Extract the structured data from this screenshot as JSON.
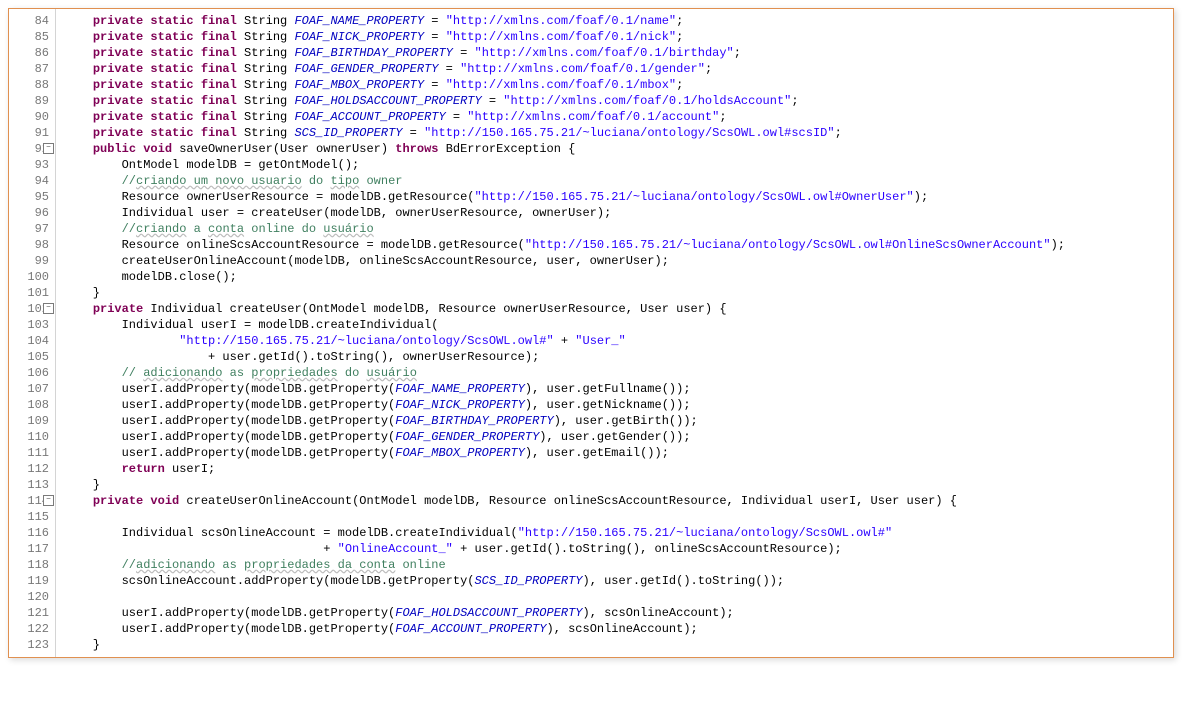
{
  "colors": {
    "keyword": "#7f0055",
    "string": "#2a00ff",
    "field": "#0000c0",
    "comment": "#3f7f5f",
    "lineNumber": "#787878",
    "border": "#e09050",
    "background": "#ffffff"
  },
  "startLine": 84,
  "endLine": 123,
  "foldLines": [
    92,
    102,
    114
  ],
  "lines": [
    {
      "n": 84,
      "t": [
        {
          "s": "    ",
          "c": "plain"
        },
        {
          "s": "private static final",
          "c": "kw"
        },
        {
          "s": " String ",
          "c": "plain"
        },
        {
          "s": "FOAF_NAME_PROPERTY",
          "c": "field"
        },
        {
          "s": " = ",
          "c": "plain"
        },
        {
          "s": "\"http://xmlns.com/foaf/0.1/name\"",
          "c": "str"
        },
        {
          "s": ";",
          "c": "plain"
        }
      ]
    },
    {
      "n": 85,
      "t": [
        {
          "s": "    ",
          "c": "plain"
        },
        {
          "s": "private static final",
          "c": "kw"
        },
        {
          "s": " String ",
          "c": "plain"
        },
        {
          "s": "FOAF_NICK_PROPERTY",
          "c": "field"
        },
        {
          "s": " = ",
          "c": "plain"
        },
        {
          "s": "\"http://xmlns.com/foaf/0.1/nick\"",
          "c": "str"
        },
        {
          "s": ";",
          "c": "plain"
        }
      ]
    },
    {
      "n": 86,
      "t": [
        {
          "s": "    ",
          "c": "plain"
        },
        {
          "s": "private static final",
          "c": "kw"
        },
        {
          "s": " String ",
          "c": "plain"
        },
        {
          "s": "FOAF_BIRTHDAY_PROPERTY",
          "c": "field"
        },
        {
          "s": " = ",
          "c": "plain"
        },
        {
          "s": "\"http://xmlns.com/foaf/0.1/birthday\"",
          "c": "str"
        },
        {
          "s": ";",
          "c": "plain"
        }
      ]
    },
    {
      "n": 87,
      "t": [
        {
          "s": "    ",
          "c": "plain"
        },
        {
          "s": "private static final",
          "c": "kw"
        },
        {
          "s": " String ",
          "c": "plain"
        },
        {
          "s": "FOAF_GENDER_PROPERTY",
          "c": "field"
        },
        {
          "s": " = ",
          "c": "plain"
        },
        {
          "s": "\"http://xmlns.com/foaf/0.1/gender\"",
          "c": "str"
        },
        {
          "s": ";",
          "c": "plain"
        }
      ]
    },
    {
      "n": 88,
      "t": [
        {
          "s": "    ",
          "c": "plain"
        },
        {
          "s": "private static final",
          "c": "kw"
        },
        {
          "s": " String ",
          "c": "plain"
        },
        {
          "s": "FOAF_MBOX_PROPERTY",
          "c": "field"
        },
        {
          "s": " = ",
          "c": "plain"
        },
        {
          "s": "\"http://xmlns.com/foaf/0.1/mbox\"",
          "c": "str"
        },
        {
          "s": ";",
          "c": "plain"
        }
      ]
    },
    {
      "n": 89,
      "t": [
        {
          "s": "    ",
          "c": "plain"
        },
        {
          "s": "private static final",
          "c": "kw"
        },
        {
          "s": " String ",
          "c": "plain"
        },
        {
          "s": "FOAF_HOLDSACCOUNT_PROPERTY",
          "c": "field"
        },
        {
          "s": " = ",
          "c": "plain"
        },
        {
          "s": "\"http://xmlns.com/foaf/0.1/holdsAccount\"",
          "c": "str"
        },
        {
          "s": ";",
          "c": "plain"
        }
      ]
    },
    {
      "n": 90,
      "t": [
        {
          "s": "    ",
          "c": "plain"
        },
        {
          "s": "private static final",
          "c": "kw"
        },
        {
          "s": " String ",
          "c": "plain"
        },
        {
          "s": "FOAF_ACCOUNT_PROPERTY",
          "c": "field"
        },
        {
          "s": " = ",
          "c": "plain"
        },
        {
          "s": "\"http://xmlns.com/foaf/0.1/account\"",
          "c": "str"
        },
        {
          "s": ";",
          "c": "plain"
        }
      ]
    },
    {
      "n": 91,
      "t": [
        {
          "s": "    ",
          "c": "plain"
        },
        {
          "s": "private static final",
          "c": "kw"
        },
        {
          "s": " String ",
          "c": "plain"
        },
        {
          "s": "SCS_ID_PROPERTY",
          "c": "field"
        },
        {
          "s": " = ",
          "c": "plain"
        },
        {
          "s": "\"http://150.165.75.21/~luciana/ontology/ScsOWL.owl#scsID\"",
          "c": "str"
        },
        {
          "s": ";",
          "c": "plain"
        }
      ]
    },
    {
      "n": 92,
      "t": [
        {
          "s": "    ",
          "c": "plain"
        },
        {
          "s": "public void",
          "c": "kw"
        },
        {
          "s": " saveOwnerUser(User ownerUser) ",
          "c": "plain"
        },
        {
          "s": "throws",
          "c": "kw"
        },
        {
          "s": " BdErrorException {",
          "c": "plain"
        }
      ]
    },
    {
      "n": 93,
      "t": [
        {
          "s": "        OntModel modelDB = getOntModel();",
          "c": "plain"
        }
      ]
    },
    {
      "n": 94,
      "t": [
        {
          "s": "        ",
          "c": "plain"
        },
        {
          "s": "//",
          "c": "comment"
        },
        {
          "s": "criando um novo usuario",
          "c": "comment wavy"
        },
        {
          "s": " do ",
          "c": "comment"
        },
        {
          "s": "tipo",
          "c": "comment wavy"
        },
        {
          "s": " owner",
          "c": "comment"
        }
      ]
    },
    {
      "n": 95,
      "t": [
        {
          "s": "        Resource ownerUserResource = modelDB.getResource(",
          "c": "plain"
        },
        {
          "s": "\"http://150.165.75.21/~luciana/ontology/ScsOWL.owl#OwnerUser\"",
          "c": "str"
        },
        {
          "s": ");",
          "c": "plain"
        }
      ]
    },
    {
      "n": 96,
      "t": [
        {
          "s": "        Individual user = createUser(modelDB, ownerUserResource, ownerUser);",
          "c": "plain"
        }
      ]
    },
    {
      "n": 97,
      "t": [
        {
          "s": "        ",
          "c": "plain"
        },
        {
          "s": "//",
          "c": "comment"
        },
        {
          "s": "criando",
          "c": "comment wavy"
        },
        {
          "s": " a ",
          "c": "comment"
        },
        {
          "s": "conta",
          "c": "comment wavy"
        },
        {
          "s": " online do ",
          "c": "comment"
        },
        {
          "s": "usuário",
          "c": "comment wavy"
        }
      ]
    },
    {
      "n": 98,
      "t": [
        {
          "s": "        Resource onlineScsAccountResource = modelDB.getResource(",
          "c": "plain"
        },
        {
          "s": "\"http://150.165.75.21/~luciana/ontology/ScsOWL.owl#OnlineScsOwnerAccount\"",
          "c": "str"
        },
        {
          "s": ");",
          "c": "plain"
        }
      ]
    },
    {
      "n": 99,
      "t": [
        {
          "s": "        createUserOnlineAccount(modelDB, onlineScsAccountResource, user, ownerUser);",
          "c": "plain"
        }
      ]
    },
    {
      "n": 100,
      "t": [
        {
          "s": "        modelDB.close();",
          "c": "plain"
        }
      ]
    },
    {
      "n": 101,
      "t": [
        {
          "s": "    }",
          "c": "plain"
        }
      ]
    },
    {
      "n": 102,
      "t": [
        {
          "s": "    ",
          "c": "plain"
        },
        {
          "s": "private",
          "c": "kw"
        },
        {
          "s": " Individual createUser(OntModel modelDB, Resource ownerUserResource, User user) {",
          "c": "plain"
        }
      ]
    },
    {
      "n": 103,
      "t": [
        {
          "s": "        Individual userI = modelDB.createIndividual(",
          "c": "plain"
        }
      ]
    },
    {
      "n": 104,
      "t": [
        {
          "s": "                ",
          "c": "plain"
        },
        {
          "s": "\"http://150.165.75.21/~luciana/ontology/ScsOWL.owl#\"",
          "c": "str"
        },
        {
          "s": " + ",
          "c": "plain"
        },
        {
          "s": "\"User_\"",
          "c": "str"
        }
      ]
    },
    {
      "n": 105,
      "t": [
        {
          "s": "                    + user.getId().toString(), ownerUserResource);",
          "c": "plain"
        }
      ]
    },
    {
      "n": 106,
      "t": [
        {
          "s": "        ",
          "c": "plain"
        },
        {
          "s": "// ",
          "c": "comment"
        },
        {
          "s": "adicionando",
          "c": "comment wavy"
        },
        {
          "s": " as ",
          "c": "comment"
        },
        {
          "s": "propriedades",
          "c": "comment wavy"
        },
        {
          "s": " do ",
          "c": "comment"
        },
        {
          "s": "usuário",
          "c": "comment wavy"
        }
      ]
    },
    {
      "n": 107,
      "t": [
        {
          "s": "        userI.addProperty(modelDB.getProperty(",
          "c": "plain"
        },
        {
          "s": "FOAF_NAME_PROPERTY",
          "c": "field"
        },
        {
          "s": "), user.getFullname());",
          "c": "plain"
        }
      ]
    },
    {
      "n": 108,
      "t": [
        {
          "s": "        userI.addProperty(modelDB.getProperty(",
          "c": "plain"
        },
        {
          "s": "FOAF_NICK_PROPERTY",
          "c": "field"
        },
        {
          "s": "), user.getNickname());",
          "c": "plain"
        }
      ]
    },
    {
      "n": 109,
      "t": [
        {
          "s": "        userI.addProperty(modelDB.getProperty(",
          "c": "plain"
        },
        {
          "s": "FOAF_BIRTHDAY_PROPERTY",
          "c": "field"
        },
        {
          "s": "), user.getBirth());",
          "c": "plain"
        }
      ]
    },
    {
      "n": 110,
      "t": [
        {
          "s": "        userI.addProperty(modelDB.getProperty(",
          "c": "plain"
        },
        {
          "s": "FOAF_GENDER_PROPERTY",
          "c": "field"
        },
        {
          "s": "), user.getGender());",
          "c": "plain"
        }
      ]
    },
    {
      "n": 111,
      "t": [
        {
          "s": "        userI.addProperty(modelDB.getProperty(",
          "c": "plain"
        },
        {
          "s": "FOAF_MBOX_PROPERTY",
          "c": "field"
        },
        {
          "s": "), user.getEmail());",
          "c": "plain"
        }
      ]
    },
    {
      "n": 112,
      "t": [
        {
          "s": "        ",
          "c": "plain"
        },
        {
          "s": "return",
          "c": "kw"
        },
        {
          "s": " userI;",
          "c": "plain"
        }
      ]
    },
    {
      "n": 113,
      "t": [
        {
          "s": "    }",
          "c": "plain"
        }
      ]
    },
    {
      "n": 114,
      "t": [
        {
          "s": "    ",
          "c": "plain"
        },
        {
          "s": "private void",
          "c": "kw"
        },
        {
          "s": " createUserOnlineAccount(OntModel modelDB, Resource onlineScsAccountResource, Individual userI, User user) {",
          "c": "plain"
        }
      ]
    },
    {
      "n": 115,
      "t": [
        {
          "s": "",
          "c": "plain"
        }
      ]
    },
    {
      "n": 116,
      "t": [
        {
          "s": "        Individual scsOnlineAccount = modelDB.createIndividual(",
          "c": "plain"
        },
        {
          "s": "\"http://150.165.75.21/~luciana/ontology/ScsOWL.owl#\"",
          "c": "str"
        }
      ]
    },
    {
      "n": 117,
      "t": [
        {
          "s": "                                    + ",
          "c": "plain"
        },
        {
          "s": "\"OnlineAccount_\"",
          "c": "str"
        },
        {
          "s": " + user.getId().toString(), onlineScsAccountResource);",
          "c": "plain"
        }
      ]
    },
    {
      "n": 118,
      "t": [
        {
          "s": "        ",
          "c": "plain"
        },
        {
          "s": "//",
          "c": "comment"
        },
        {
          "s": "adicionando",
          "c": "comment wavy"
        },
        {
          "s": " as ",
          "c": "comment"
        },
        {
          "s": "propriedades da conta",
          "c": "comment wavy"
        },
        {
          "s": " online",
          "c": "comment"
        }
      ]
    },
    {
      "n": 119,
      "t": [
        {
          "s": "        scsOnlineAccount.addProperty(modelDB.getProperty(",
          "c": "plain"
        },
        {
          "s": "SCS_ID_PROPERTY",
          "c": "field"
        },
        {
          "s": "), user.getId().toString());",
          "c": "plain"
        }
      ]
    },
    {
      "n": 120,
      "t": [
        {
          "s": "",
          "c": "plain"
        }
      ]
    },
    {
      "n": 121,
      "t": [
        {
          "s": "        userI.addProperty(modelDB.getProperty(",
          "c": "plain"
        },
        {
          "s": "FOAF_HOLDSACCOUNT_PROPERTY",
          "c": "field"
        },
        {
          "s": "), scsOnlineAccount);",
          "c": "plain"
        }
      ]
    },
    {
      "n": 122,
      "t": [
        {
          "s": "        userI.addProperty(modelDB.getProperty(",
          "c": "plain"
        },
        {
          "s": "FOAF_ACCOUNT_PROPERTY",
          "c": "field"
        },
        {
          "s": "), scsOnlineAccount);",
          "c": "plain"
        }
      ]
    },
    {
      "n": 123,
      "t": [
        {
          "s": "    }",
          "c": "plain"
        }
      ]
    }
  ]
}
